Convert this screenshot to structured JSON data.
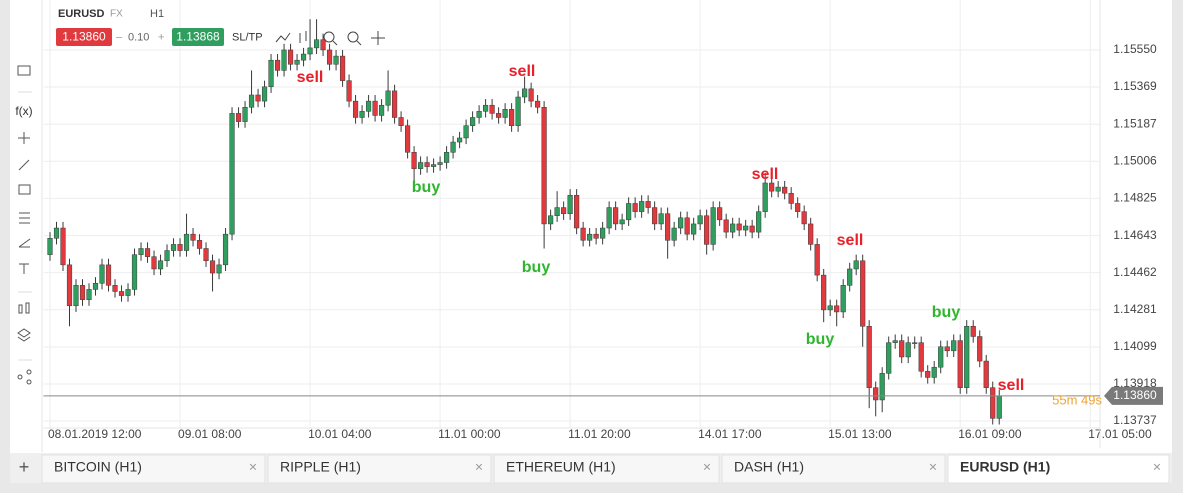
{
  "header": {
    "symbol": "EURUSD",
    "market": "FX",
    "timeframe": "H1",
    "sell_price": "1.13860",
    "spread_minus": "–",
    "spread": "0.10",
    "spread_plus": "+",
    "buy_price": "1.13868",
    "sltp": "SL/TP"
  },
  "toolbar": {
    "function_label": "f(x)"
  },
  "chart_data": {
    "type": "candlestick",
    "up_color": "#2f9e5e",
    "down_color": "#e0393e",
    "grid": true,
    "open": [
      1.1455,
      1.1463,
      1.1468,
      1.145,
      1.143,
      1.144,
      1.1433,
      1.1438,
      1.1441,
      1.145,
      1.144,
      1.1437,
      1.1435,
      1.1438,
      1.1455,
      1.1458,
      1.1454,
      1.1448,
      1.1452,
      1.1457,
      1.146,
      1.1457,
      1.1465,
      1.1462,
      1.1458,
      1.1452,
      1.1446,
      1.145,
      1.1465,
      1.1524,
      1.152,
      1.1527,
      1.1533,
      1.153,
      1.1537,
      1.155,
      1.1545,
      1.1555,
      1.1548,
      1.155,
      1.1553,
      1.1556,
      1.156,
      1.1555,
      1.1548,
      1.1552,
      1.154,
      1.153,
      1.1522,
      1.1525,
      1.153,
      1.1523,
      1.1528,
      1.1535,
      1.1522,
      1.1518,
      1.1505,
      1.1497,
      1.15,
      1.1498,
      1.1499,
      1.15,
      1.1505,
      1.151,
      1.1512,
      1.1518,
      1.1522,
      1.1525,
      1.1528,
      1.1524,
      1.1522,
      1.1526,
      1.1518,
      1.1532,
      1.1536,
      1.153,
      1.1527,
      1.147,
      1.1474,
      1.1478,
      1.1475,
      1.1484,
      1.1468,
      1.1462,
      1.1465,
      1.1463,
      1.1468,
      1.1478,
      1.147,
      1.1472,
      1.148,
      1.1476,
      1.1481,
      1.1478,
      1.147,
      1.1475,
      1.1462,
      1.1468,
      1.1473,
      1.1465,
      1.147,
      1.1474,
      1.146,
      1.1478,
      1.1472,
      1.1466,
      1.147,
      1.1467,
      1.1469,
      1.1466,
      1.1476,
      1.149,
      1.1486,
      1.1488,
      1.1485,
      1.148,
      1.1476,
      1.147,
      1.146,
      1.1445,
      1.1428,
      1.143,
      1.1427,
      1.144,
      1.1448,
      1.1452,
      1.142,
      1.139,
      1.1384,
      1.1397,
      1.1412,
      1.1413,
      1.1405,
      1.1412,
      1.1412,
      1.1398,
      1.1395,
      1.14,
      1.141,
      1.1408,
      1.1413,
      1.139,
      1.142,
      1.1415,
      1.1403,
      1.139,
      1.1375
    ],
    "high": [
      1.1466,
      1.1471,
      1.1471,
      1.1453,
      1.1443,
      1.1443,
      1.1441,
      1.1444,
      1.1453,
      1.1453,
      1.1443,
      1.144,
      1.1441,
      1.1458,
      1.1461,
      1.1461,
      1.1457,
      1.1455,
      1.146,
      1.1463,
      1.1463,
      1.1475,
      1.1468,
      1.1465,
      1.1461,
      1.1455,
      1.1453,
      1.1468,
      1.1527,
      1.1527,
      1.153,
      1.1545,
      1.1536,
      1.154,
      1.1553,
      1.1553,
      1.1558,
      1.1558,
      1.1553,
      1.1556,
      1.157,
      1.157,
      1.1563,
      1.1558,
      1.1555,
      1.1555,
      1.1543,
      1.1533,
      1.1528,
      1.1533,
      1.1533,
      1.1531,
      1.1545,
      1.1538,
      1.1525,
      1.1521,
      1.1508,
      1.1503,
      1.1503,
      1.1502,
      1.1503,
      1.1508,
      1.1513,
      1.1515,
      1.1521,
      1.1525,
      1.1528,
      1.1531,
      1.1531,
      1.1527,
      1.1529,
      1.1529,
      1.1535,
      1.1542,
      1.1539,
      1.1533,
      1.153,
      1.1477,
      1.1486,
      1.1481,
      1.1487,
      1.1487,
      1.1471,
      1.1468,
      1.1468,
      1.1471,
      1.1481,
      1.1481,
      1.1475,
      1.1483,
      1.1483,
      1.1484,
      1.1484,
      1.1481,
      1.1478,
      1.1478,
      1.1471,
      1.1476,
      1.1476,
      1.1473,
      1.1477,
      1.1477,
      1.1481,
      1.1481,
      1.1475,
      1.1473,
      1.1473,
      1.1472,
      1.1472,
      1.1479,
      1.1495,
      1.1493,
      1.1491,
      1.1491,
      1.1488,
      1.1483,
      1.1479,
      1.1473,
      1.1463,
      1.1448,
      1.1433,
      1.1433,
      1.1443,
      1.1451,
      1.1455,
      1.1455,
      1.1423,
      1.1393,
      1.14,
      1.1415,
      1.1416,
      1.1416,
      1.1415,
      1.1415,
      1.1415,
      1.1401,
      1.1403,
      1.1413,
      1.1413,
      1.1416,
      1.1416,
      1.1423,
      1.1423,
      1.1418,
      1.1406,
      1.1393,
      1.1389
    ],
    "low": [
      1.1452,
      1.146,
      1.1447,
      1.142,
      1.1427,
      1.143,
      1.143,
      1.1435,
      1.1438,
      1.1437,
      1.1434,
      1.1432,
      1.1432,
      1.1435,
      1.1452,
      1.1451,
      1.1445,
      1.1445,
      1.1449,
      1.1454,
      1.1454,
      1.1454,
      1.1459,
      1.1455,
      1.1449,
      1.1437,
      1.1443,
      1.1447,
      1.1462,
      1.1517,
      1.1517,
      1.1524,
      1.1527,
      1.1527,
      1.1534,
      1.1542,
      1.1542,
      1.1545,
      1.1545,
      1.1547,
      1.155,
      1.1553,
      1.1552,
      1.1545,
      1.1545,
      1.1537,
      1.1527,
      1.1519,
      1.1519,
      1.1522,
      1.152,
      1.152,
      1.1525,
      1.1519,
      1.1515,
      1.1502,
      1.1488,
      1.1494,
      1.1495,
      1.1495,
      1.1496,
      1.1497,
      1.1502,
      1.1507,
      1.1509,
      1.1515,
      1.1519,
      1.1522,
      1.1521,
      1.1519,
      1.1519,
      1.1515,
      1.1515,
      1.1529,
      1.1527,
      1.1524,
      1.1458,
      1.1467,
      1.1471,
      1.1472,
      1.1472,
      1.1465,
      1.1459,
      1.1459,
      1.146,
      1.146,
      1.1465,
      1.1467,
      1.1467,
      1.1469,
      1.1473,
      1.1473,
      1.1475,
      1.1467,
      1.1467,
      1.1453,
      1.1459,
      1.1465,
      1.1462,
      1.1462,
      1.1467,
      1.1455,
      1.1457,
      1.1469,
      1.1463,
      1.1463,
      1.1464,
      1.1464,
      1.1463,
      1.1463,
      1.1473,
      1.1483,
      1.1483,
      1.1482,
      1.1477,
      1.1473,
      1.1467,
      1.1457,
      1.1442,
      1.1422,
      1.1425,
      1.142,
      1.1424,
      1.1437,
      1.1445,
      1.141,
      1.138,
      1.1376,
      1.1378,
      1.1394,
      1.1409,
      1.1402,
      1.1402,
      1.1409,
      1.1395,
      1.1392,
      1.1392,
      1.1397,
      1.1405,
      1.1405,
      1.1387,
      1.1387,
      1.1412,
      1.14,
      1.1387,
      1.1372,
      1.1372
    ],
    "close": [
      1.1463,
      1.1468,
      1.145,
      1.143,
      1.144,
      1.1433,
      1.1438,
      1.1441,
      1.145,
      1.144,
      1.1437,
      1.1435,
      1.1438,
      1.1455,
      1.1458,
      1.1454,
      1.1448,
      1.1452,
      1.1457,
      1.146,
      1.1457,
      1.1465,
      1.1462,
      1.1458,
      1.1452,
      1.1446,
      1.145,
      1.1465,
      1.1524,
      1.152,
      1.1527,
      1.1533,
      1.153,
      1.1537,
      1.155,
      1.1545,
      1.1555,
      1.1548,
      1.155,
      1.1553,
      1.1556,
      1.156,
      1.1555,
      1.1548,
      1.1552,
      1.154,
      1.153,
      1.1522,
      1.1525,
      1.153,
      1.1523,
      1.1528,
      1.1535,
      1.1522,
      1.1518,
      1.1505,
      1.1497,
      1.15,
      1.1498,
      1.1499,
      1.15,
      1.1505,
      1.151,
      1.1512,
      1.1518,
      1.1522,
      1.1525,
      1.1528,
      1.1524,
      1.1522,
      1.1526,
      1.1518,
      1.1532,
      1.1536,
      1.153,
      1.1527,
      1.147,
      1.1474,
      1.1478,
      1.1475,
      1.1484,
      1.1468,
      1.1462,
      1.1465,
      1.1463,
      1.1468,
      1.1478,
      1.147,
      1.1472,
      1.148,
      1.1476,
      1.1481,
      1.1478,
      1.147,
      1.1475,
      1.1462,
      1.1468,
      1.1473,
      1.1465,
      1.147,
      1.1474,
      1.146,
      1.1478,
      1.1472,
      1.1466,
      1.147,
      1.1467,
      1.1469,
      1.1466,
      1.1476,
      1.149,
      1.1486,
      1.1488,
      1.1485,
      1.148,
      1.1476,
      1.147,
      1.146,
      1.1445,
      1.1428,
      1.143,
      1.1427,
      1.144,
      1.1448,
      1.1452,
      1.142,
      1.139,
      1.1384,
      1.1397,
      1.1412,
      1.1413,
      1.1405,
      1.1412,
      1.1412,
      1.1398,
      1.1395,
      1.14,
      1.141,
      1.1408,
      1.1413,
      1.139,
      1.142,
      1.1415,
      1.1403,
      1.139,
      1.1375,
      1.1386
    ],
    "xlim": [
      -1,
      161.5
    ],
    "xticks": [
      {
        "value": 0,
        "label": "08.01.2019 12:00"
      },
      {
        "value": 20,
        "label": "09.01 08:00"
      },
      {
        "value": 40,
        "label": "10.01 04:00"
      },
      {
        "value": 60,
        "label": "11.01 00:00"
      },
      {
        "value": 80,
        "label": "11.01 20:00"
      },
      {
        "value": 100,
        "label": "14.01 17:00"
      },
      {
        "value": 120,
        "label": "15.01 13:00"
      },
      {
        "value": 140,
        "label": "16.01 09:00"
      },
      {
        "value": 160,
        "label": "17.01 05:00"
      }
    ],
    "ylim": [
      1.13703,
      1.15794
    ],
    "yticks": [
      {
        "value": 1.1555,
        "label": "1.15550"
      },
      {
        "value": 1.15369,
        "label": "1.15369"
      },
      {
        "value": 1.15187,
        "label": "1.15187"
      },
      {
        "value": 1.15006,
        "label": "1.15006"
      },
      {
        "value": 1.14825,
        "label": "1.14825"
      },
      {
        "value": 1.14643,
        "label": "1.14643"
      },
      {
        "value": 1.14462,
        "label": "1.14462"
      },
      {
        "value": 1.14281,
        "label": "1.14281"
      },
      {
        "value": 1.14099,
        "label": "1.14099"
      },
      {
        "value": 1.13918,
        "label": "1.13918"
      },
      {
        "value": 1.13737,
        "label": "1.13737"
      }
    ],
    "current_price": {
      "value": 1.1386,
      "label": "1.13860"
    },
    "countdown": "55m 49s",
    "annotations": [
      "sell",
      "sell",
      "buy",
      "sell",
      "buy",
      "sell",
      "buy",
      "buy",
      "sell"
    ]
  },
  "tabs": [
    "BITCOIN (H1)",
    "RIPPLE (H1)",
    "ETHEREUM (H1)",
    "DASH (H1)",
    "EURUSD (H1)"
  ],
  "add_tab": "+",
  "close_icon": "×"
}
